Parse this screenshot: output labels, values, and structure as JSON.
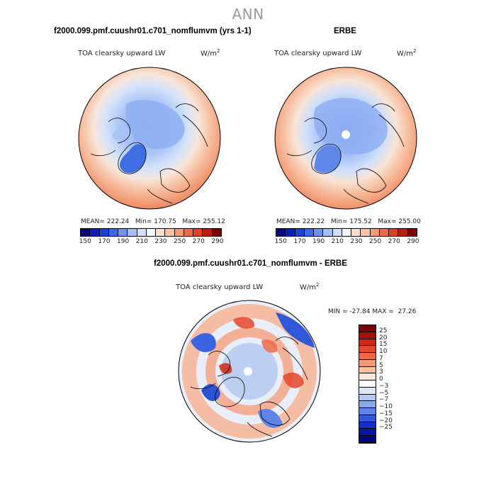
{
  "header": {
    "title": "ANN"
  },
  "chart_data": [
    {
      "type": "heatmap",
      "projection": "north-polar-stereographic",
      "panel_title": "f2000.099.pmf.cuushr01.c701_nomflumvm (yrs 1-1)",
      "variable": "TOA clearsky upward LW",
      "units": "W/m",
      "units_exp": "2",
      "stats": {
        "mean_label": "MEAN=",
        "mean": "222.24",
        "min_label": "Min=",
        "min": "170.75",
        "max_label": "Max=",
        "max": "255.12"
      },
      "colorbar": {
        "levels": [
          150,
          160,
          170,
          180,
          190,
          200,
          210,
          220,
          230,
          240,
          250,
          260,
          270,
          280,
          290
        ],
        "tick_labels": [
          "150",
          "170",
          "190",
          "210",
          "230",
          "250",
          "270",
          "290"
        ]
      }
    },
    {
      "type": "heatmap",
      "projection": "north-polar-stereographic",
      "panel_title": "ERBE",
      "variable": "TOA clearsky upward LW",
      "units": "W/m",
      "units_exp": "2",
      "stats": {
        "mean_label": "MEAN=",
        "mean": "222.22",
        "min_label": "Min=",
        "min": "175.52",
        "max_label": "Max=",
        "max": "255.00"
      },
      "colorbar": {
        "levels": [
          150,
          160,
          170,
          180,
          190,
          200,
          210,
          220,
          230,
          240,
          250,
          260,
          270,
          280,
          290
        ],
        "tick_labels": [
          "150",
          "170",
          "190",
          "210",
          "230",
          "250",
          "270",
          "290"
        ]
      }
    },
    {
      "type": "heatmap",
      "projection": "north-polar-stereographic",
      "panel_title": "f2000.099.pmf.cuushr01.c701_nomflumvm - ERBE",
      "variable": "TOA clearsky upward LW",
      "units": "W/m",
      "units_exp": "2",
      "stats": {
        "min_label": "MIN =",
        "min": "-27.84",
        "max_label": "MAX =",
        "max": "27.26"
      },
      "colorbar": {
        "tick_labels": [
          "25",
          "20",
          "15",
          "10",
          "7",
          "5",
          "3",
          "0",
          "−3",
          "−5",
          "−7",
          "−10",
          "−15",
          "−20",
          "−25"
        ]
      }
    }
  ],
  "colors": {
    "abs_palette": [
      "#08087e",
      "#0b1fb4",
      "#1a45d4",
      "#3a6ae8",
      "#6f94f0",
      "#a3bff6",
      "#cfe0fb",
      "#f3f6fc",
      "#fbe0cf",
      "#f9c2a5",
      "#f59a76",
      "#ec6c47",
      "#da4425",
      "#b81f0f",
      "#7d0000"
    ],
    "diff_palette": [
      "#7d0000",
      "#a80e08",
      "#cc2a14",
      "#e3462a",
      "#ee6a47",
      "#f59a76",
      "#f9c2a5",
      "#fde7d8",
      "#ffffff",
      "#dce6f7",
      "#b3c8f2",
      "#8aa8ee",
      "#5f84e8",
      "#3159da",
      "#1530c4",
      "#0a16a0",
      "#05067a"
    ]
  }
}
